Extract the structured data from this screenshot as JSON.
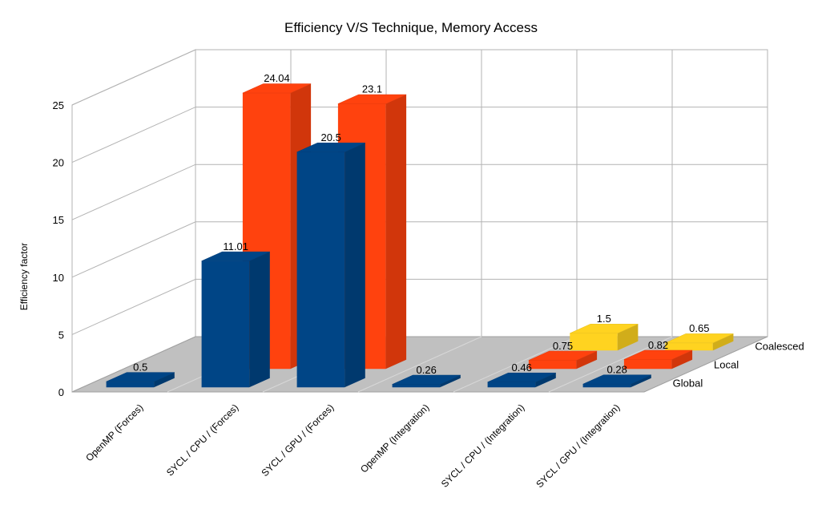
{
  "chart_data": {
    "type": "bar",
    "title": "Efficiency V/S Technique, Memory Access",
    "ylabel": "Efficiency factor",
    "xlabel": "",
    "ylim": [
      0,
      25
    ],
    "yticks": [
      0,
      5,
      10,
      15,
      20,
      25
    ],
    "grid": true,
    "three_d": true,
    "categories": [
      "OpenMP (Forces)",
      "SYCL / CPU / (Forces)",
      "SYCL / GPU / (Forces)",
      "OpenMP (Integration)",
      "SYCL / CPU / (Integration)",
      "SYCL / GPU / (Integration)"
    ],
    "series": [
      {
        "name": "Global",
        "color": "#004586",
        "values": [
          0.5,
          11.01,
          20.5,
          0.26,
          0.46,
          0.28
        ]
      },
      {
        "name": "Local",
        "color": "#ff420e",
        "values": [
          null,
          24.04,
          23.1,
          null,
          0.75,
          0.82
        ]
      },
      {
        "name": "Coalesced",
        "color": "#ffd320",
        "values": [
          null,
          null,
          null,
          null,
          1.5,
          0.65
        ]
      }
    ]
  }
}
